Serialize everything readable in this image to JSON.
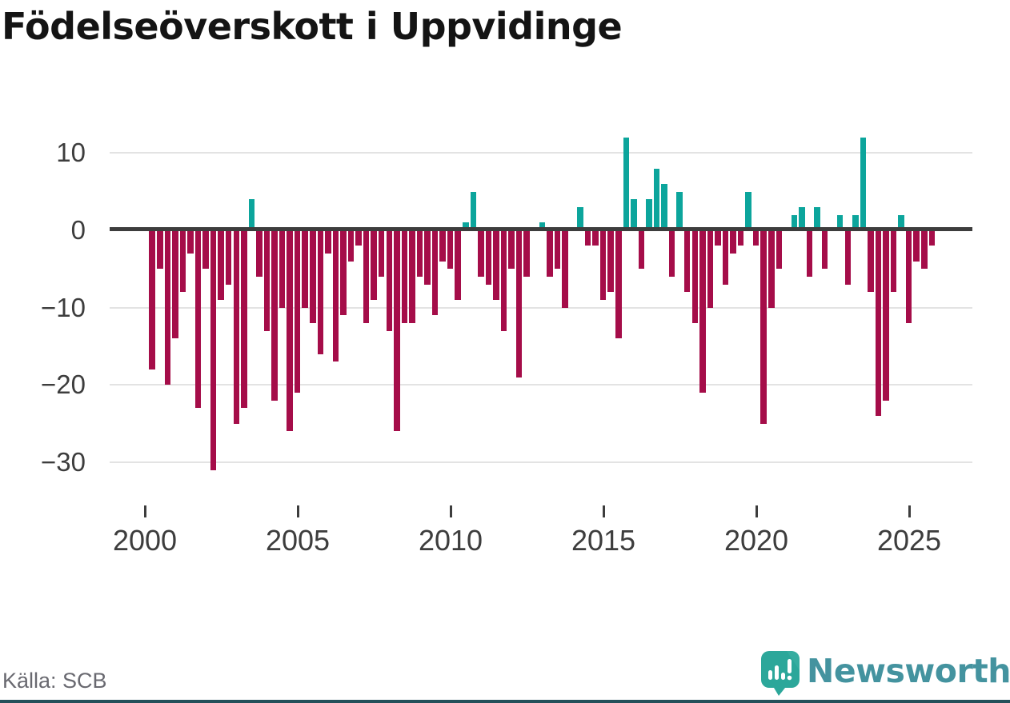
{
  "title": "Födelseöverskott i Uppvidinge",
  "source": "Källa: SCB",
  "logo": {
    "text": "Newsworthy"
  },
  "colors": {
    "negative": "#a50d49",
    "positive": "#0ca59c",
    "zero_line": "#3d3d3d",
    "grid": "#e3e3e3",
    "title": "#141414",
    "axis_text": "#3d3d3d",
    "source_text": "#696970",
    "logo_teal": "#2ca79a",
    "logo_text_color": "#44939f"
  },
  "chart_data": {
    "type": "bar",
    "title": "Födelseöverskott i Uppvidinge",
    "frequency": "quarterly",
    "x_start": "2000-Q1",
    "x_end": "2025-Q3",
    "x_ticks": [
      2000,
      2005,
      2010,
      2015,
      2020,
      2025
    ],
    "y_ticks": [
      10,
      0,
      -10,
      -20,
      -30
    ],
    "ylim": [
      -32,
      13
    ],
    "grid": true,
    "legend": false,
    "positive_color": "#0ca59c",
    "negative_color": "#a50d49",
    "values": [
      -18,
      -5,
      -20,
      -14,
      -8,
      -3,
      -23,
      -5,
      -31,
      -9,
      -7,
      -25,
      -23,
      4,
      -6,
      -13,
      -22,
      -10,
      -26,
      -21,
      -10,
      -12,
      -16,
      -3,
      -17,
      -11,
      -4,
      -2,
      -12,
      -9,
      -6,
      -13,
      -26,
      -12,
      -12,
      -6,
      -7,
      -11,
      -4,
      -5,
      -9,
      1,
      5,
      -6,
      -7,
      -9,
      -13,
      -5,
      -19,
      -6,
      0,
      1,
      -6,
      -5,
      -10,
      0,
      3,
      -2,
      -2,
      -9,
      -8,
      -14,
      12,
      4,
      -5,
      4,
      8,
      6,
      -6,
      5,
      -8,
      -12,
      -21,
      -10,
      -2,
      -7,
      -3,
      -2,
      5,
      -2,
      -25,
      -10,
      -5,
      0,
      2,
      3,
      -6,
      3,
      -5,
      0,
      2,
      -7,
      2,
      12,
      -8,
      -24,
      -22,
      -8,
      2,
      -12,
      -4,
      -5,
      -2
    ]
  }
}
